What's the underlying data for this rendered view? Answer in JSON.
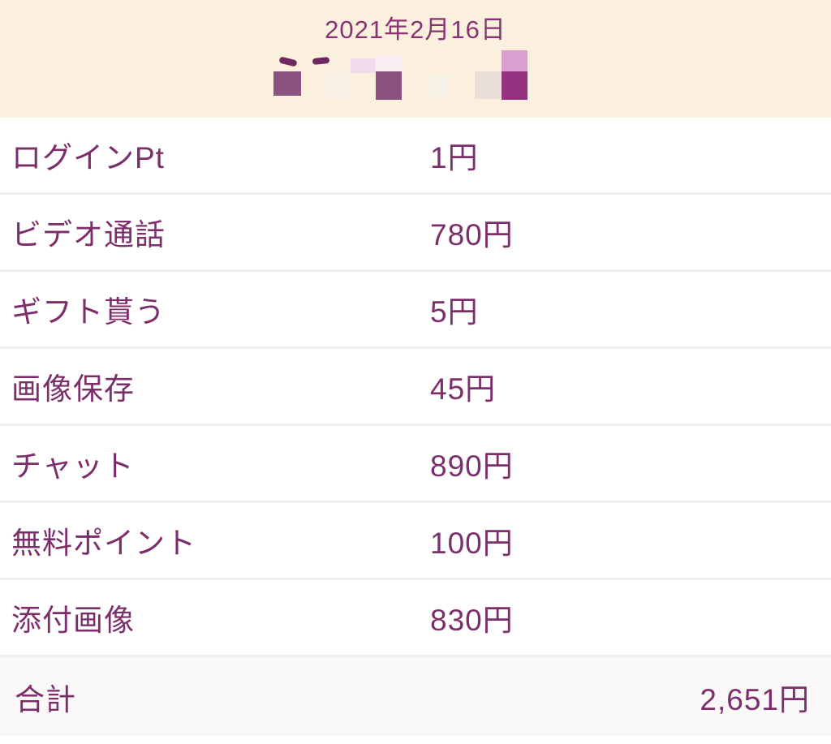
{
  "header": {
    "date": "2021年2月16日"
  },
  "table": {
    "rows": [
      {
        "label": "ログインPt",
        "value": "1円"
      },
      {
        "label": "ビデオ通話",
        "value": "780円"
      },
      {
        "label": "ギフト貰う",
        "value": "5円"
      },
      {
        "label": "画像保存",
        "value": "45円"
      },
      {
        "label": "チャット",
        "value": "890円"
      },
      {
        "label": "無料ポイント",
        "value": "100円"
      },
      {
        "label": "添付画像",
        "value": "830円"
      }
    ],
    "total": {
      "label": "合計",
      "value": "2,651円"
    }
  },
  "colors": {
    "accent_text": "#7c2e6a",
    "date_text": "#8a3374",
    "header_bg": "#fbf0dd",
    "row_bg": "#ffffff",
    "divider": "#f0eeee",
    "total_row_bg": "#faf7f8",
    "pixelation_dark": "#8b5380",
    "pixelation_purple": "#93337f",
    "pixelation_light_purple": "#d89fd0",
    "pixelation_light_pink": "#f2d9ee"
  }
}
